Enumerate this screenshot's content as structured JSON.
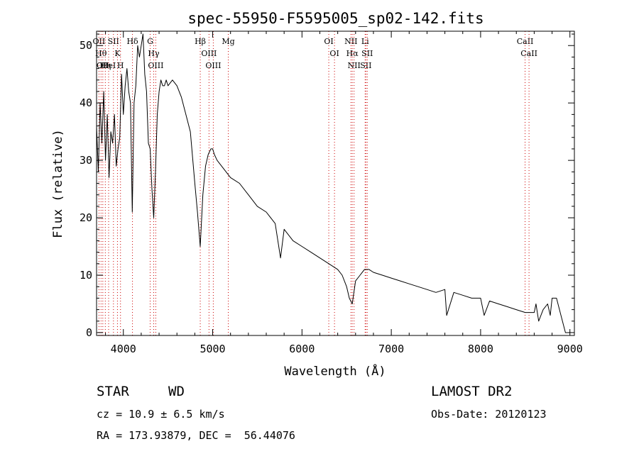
{
  "chart_data": {
    "type": "line",
    "title": "spec-55950-F5595005_sp02-142.fits",
    "xlabel": "Wavelength (Å)",
    "ylabel": "Flux (relative)",
    "xlim": [
      3700,
      9050
    ],
    "ylim": [
      -0.5,
      52.5
    ],
    "xticks": [
      4000,
      5000,
      6000,
      7000,
      8000,
      9000
    ],
    "yticks": [
      0,
      10,
      20,
      30,
      40,
      50
    ],
    "grid": false,
    "line_color": "#000000",
    "marker_color": "#cc0000",
    "series": [
      {
        "x": [
          3700,
          3720,
          3740,
          3760,
          3780,
          3800,
          3820,
          3840,
          3860,
          3880,
          3900,
          3920,
          3940,
          3960,
          3980,
          4000,
          4020,
          4040,
          4060,
          4080,
          4100,
          4120,
          4140,
          4160,
          4180,
          4200,
          4220,
          4240,
          4260,
          4280,
          4300,
          4320,
          4340,
          4360,
          4380,
          4400,
          4420,
          4440,
          4460,
          4480,
          4500,
          4550,
          4600,
          4650,
          4700,
          4750,
          4800,
          4830,
          4861,
          4890,
          4920,
          4950,
          4980,
          5000,
          5020,
          5050,
          5100,
          5150,
          5200,
          5300,
          5400,
          5500,
          5600,
          5700,
          5760,
          5800,
          5900,
          6000,
          6100,
          6200,
          6300,
          6400,
          6450,
          6500,
          6530,
          6563,
          6600,
          6650,
          6700,
          6750,
          6800,
          6900,
          7000,
          7100,
          7200,
          7300,
          7400,
          7500,
          7600,
          7620,
          7700,
          7800,
          7900,
          8000,
          8040,
          8100,
          8200,
          8300,
          8400,
          8500,
          8600,
          8620,
          8650,
          8700,
          8750,
          8780,
          8800,
          8850,
          8900,
          8950,
          9000
        ],
        "y": [
          36,
          28,
          40,
          33,
          42,
          30,
          38,
          27,
          35,
          33,
          38,
          29,
          32,
          34,
          45,
          38,
          43,
          46,
          42,
          40,
          21,
          40,
          43,
          50,
          48,
          50,
          52,
          45,
          42,
          33,
          32,
          25,
          20,
          28,
          38,
          42,
          44,
          43,
          43,
          44,
          43,
          44,
          43,
          41,
          38,
          35,
          26,
          21,
          15,
          24,
          29,
          31,
          32,
          32,
          31,
          30,
          29,
          28,
          27,
          26,
          24,
          22,
          21,
          19,
          13,
          18,
          16,
          15,
          14,
          13,
          12,
          11,
          10,
          8,
          6,
          5,
          9,
          10,
          11,
          11,
          10.5,
          10,
          9.5,
          9,
          8.5,
          8,
          7.5,
          7,
          7.5,
          3,
          7,
          6.5,
          6,
          6,
          3,
          5.5,
          5,
          4.5,
          4,
          3.5,
          3.5,
          5,
          2,
          4,
          5,
          3,
          6,
          6,
          3,
          0,
          0
        ]
      }
    ],
    "line_markers": [
      {
        "wl": 3727,
        "label": "OII"
      },
      {
        "wl": 3750,
        "label": "Hθ"
      },
      {
        "wl": 3770,
        "label": "OII"
      },
      {
        "wl": 3798,
        "label": "Hη"
      },
      {
        "wl": 3835,
        "label": "HeI"
      },
      {
        "wl": 3889,
        "label": "SII"
      },
      {
        "wl": 3934,
        "label": "K"
      },
      {
        "wl": 3968,
        "label": "H"
      },
      {
        "wl": 4102,
        "label": "Hδ"
      },
      {
        "wl": 4300,
        "label": "G"
      },
      {
        "wl": 4340,
        "label": "Hγ"
      },
      {
        "wl": 4363,
        "label": "OIII"
      },
      {
        "wl": 4861,
        "label": "Hβ"
      },
      {
        "wl": 4959,
        "label": "OIII"
      },
      {
        "wl": 5007,
        "label": "OIII"
      },
      {
        "wl": 5175,
        "label": "Mg"
      },
      {
        "wl": 6300,
        "label": "OI"
      },
      {
        "wl": 6364,
        "label": "OI"
      },
      {
        "wl": 6548,
        "label": "NII"
      },
      {
        "wl": 6563,
        "label": "Hα"
      },
      {
        "wl": 6583,
        "label": "NII"
      },
      {
        "wl": 6707,
        "label": "Li"
      },
      {
        "wl": 6716,
        "label": "SII"
      },
      {
        "wl": 6731,
        "label": "SII"
      },
      {
        "wl": 8498,
        "label": "CaII"
      },
      {
        "wl": 8542,
        "label": "CaII"
      }
    ]
  },
  "info": {
    "class_label": "STAR",
    "subclass_label": "WD",
    "cz_text": "cz = 10.9 ± 6.5 km/s",
    "coords_text": "RA = 173.93879, DEC =  56.44076",
    "survey": "LAMOST DR2",
    "obs_date": "Obs-Date: 20120123"
  }
}
